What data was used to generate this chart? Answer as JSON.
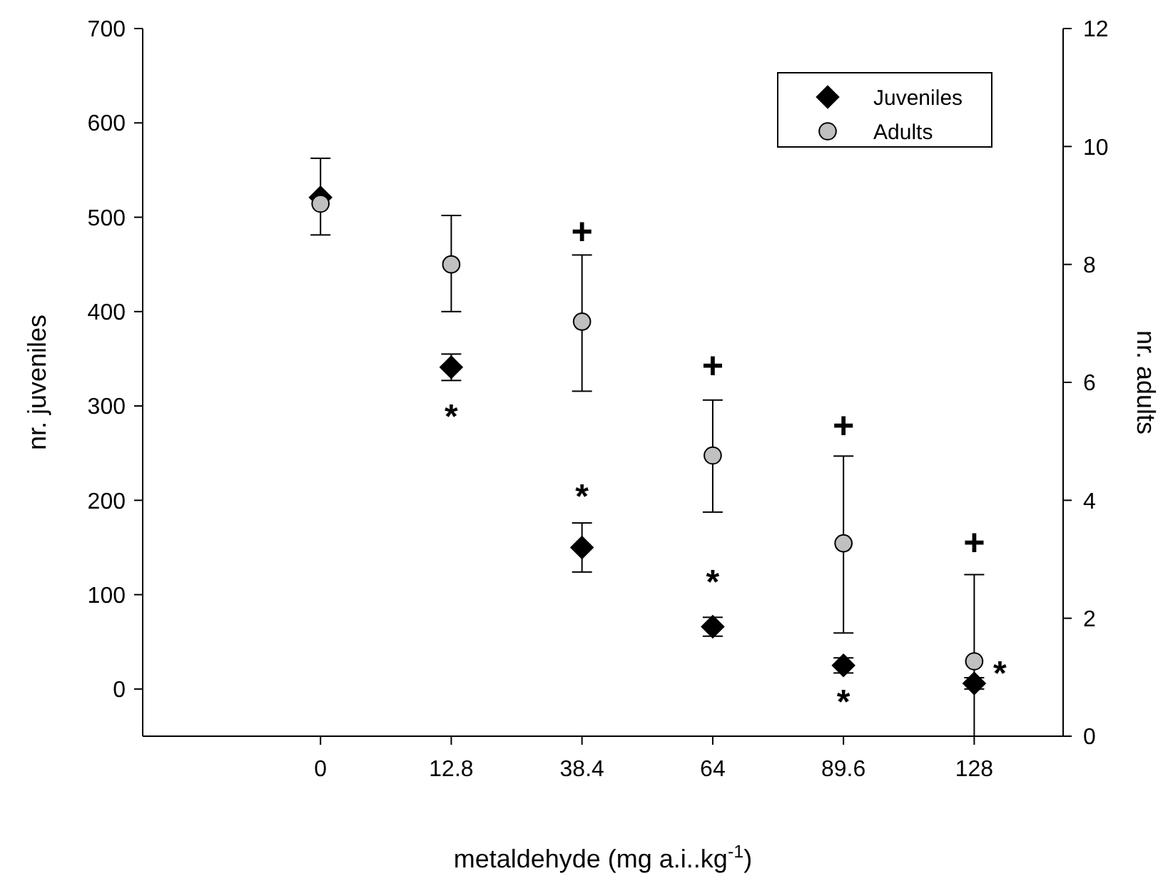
{
  "chart_data": {
    "type": "scatter",
    "xlabel": "metaldehyde (mg a.i..kg$^{-1}$)",
    "ylabel": "nr. juveniles",
    "y2label": "nr. adults",
    "categories": [
      "0",
      "12.8",
      "38.4",
      "64",
      "89.6",
      "128"
    ],
    "ylim": [
      -50,
      700
    ],
    "yticks": [
      0,
      100,
      200,
      300,
      400,
      500,
      600,
      700
    ],
    "y2lim": [
      0,
      12
    ],
    "y2ticks": [
      0,
      2,
      4,
      6,
      8,
      10,
      12
    ],
    "legend": "top right",
    "grid": false,
    "series": [
      {
        "name": "Juveniles",
        "color": "#000000",
        "marker": "diamond",
        "values": [
          521,
          341,
          150,
          66,
          25,
          6
        ],
        "errors": [
          null,
          14,
          26,
          10,
          8,
          6
        ]
      },
      {
        "name": "Adults",
        "color": "#c0c0c0",
        "marker": "circle",
        "axis": "y2",
        "values": [
          9.03,
          8.0,
          7.03,
          4.76,
          3.27,
          1.27
        ],
        "errors": [
          [
            8.5,
            9.8
          ],
          [
            7.2,
            8.83
          ],
          [
            5.85,
            8.16
          ],
          [
            3.8,
            5.7
          ],
          [
            1.75,
            4.75
          ],
          [
            0,
            2.74
          ]
        ]
      }
    ],
    "annotations": [
      "*",
      "*",
      "*",
      "*",
      "*",
      "+",
      "+",
      "+",
      "+"
    ]
  }
}
